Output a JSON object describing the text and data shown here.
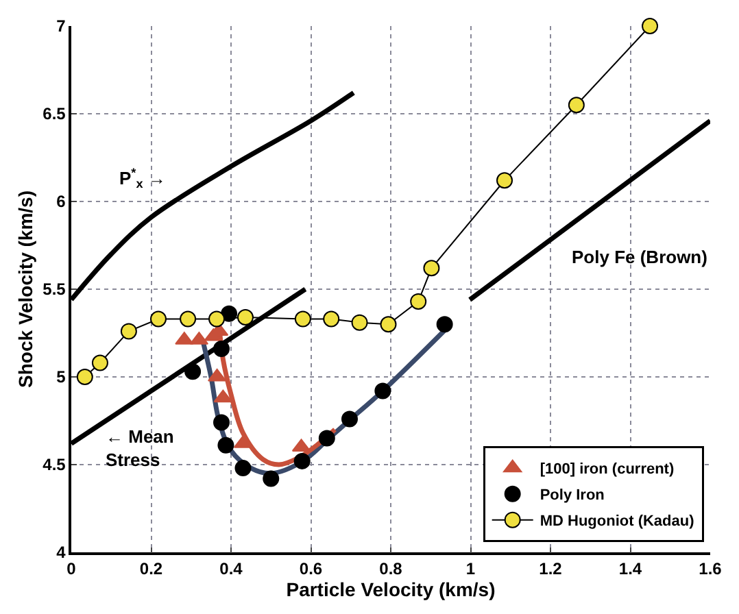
{
  "chart_data": {
    "type": "scatter",
    "xlabel": "Particle Velocity (km/s)",
    "ylabel": "Shock Velocity (km/s)",
    "xlim": [
      0,
      1.6
    ],
    "ylim": [
      4,
      7
    ],
    "xticks": [
      0,
      0.2,
      0.4,
      0.6,
      0.8,
      1,
      1.2,
      1.4,
      1.6
    ],
    "yticks": [
      4,
      4.5,
      5,
      5.5,
      6,
      6.5,
      7
    ],
    "grid": true,
    "legend": "bottom right",
    "series": [
      {
        "type": "line",
        "marker": "none",
        "color": "#000000",
        "x": [
          0,
          0.1,
          0.2,
          0.4,
          0.6,
          0.707
        ],
        "values": [
          5.44,
          5.7,
          5.91,
          6.2,
          6.46,
          6.62
        ]
      },
      {
        "type": "line",
        "marker": "none",
        "color": "#000000",
        "x": [
          0,
          0.586
        ],
        "values": [
          4.62,
          5.5
        ]
      },
      {
        "type": "line",
        "marker": "none",
        "color": "#000000",
        "x": [
          0.998,
          1.6
        ],
        "values": [
          5.44,
          6.46
        ]
      },
      {
        "type": "line",
        "marker": "none",
        "color": "#3a4a6a",
        "x": [
          0.33,
          0.35,
          0.37,
          0.4,
          0.45,
          0.5,
          0.58,
          0.65,
          0.7,
          0.78,
          0.95
        ],
        "values": [
          5.2,
          5.0,
          4.75,
          4.58,
          4.48,
          4.45,
          4.52,
          4.66,
          4.76,
          4.92,
          5.3
        ]
      },
      {
        "type": "line",
        "marker": "none",
        "color": "#c8503a",
        "x": [
          0.37,
          0.38,
          0.4,
          0.43,
          0.48,
          0.52,
          0.57,
          0.62,
          0.66
        ],
        "values": [
          5.3,
          5.1,
          4.9,
          4.68,
          4.53,
          4.5,
          4.54,
          4.62,
          4.7
        ]
      },
      {
        "name": "[100] iron (current)",
        "marker": "triangle",
        "color": "#c8503a",
        "x": [
          0.283,
          0.32,
          0.356,
          0.37,
          0.365,
          0.38,
          0.43,
          0.576
        ],
        "values": [
          5.21,
          5.21,
          5.23,
          5.26,
          5.0,
          4.88,
          4.62,
          4.6
        ]
      },
      {
        "name": "Poly Iron",
        "marker": "circle",
        "color": "#000000",
        "x": [
          0.304,
          0.376,
          0.387,
          0.43,
          0.5,
          0.578,
          0.64,
          0.697,
          0.78,
          0.935,
          0.395,
          0.376
        ],
        "values": [
          5.03,
          4.74,
          4.61,
          4.48,
          4.42,
          4.52,
          4.65,
          4.76,
          4.92,
          5.3,
          5.36,
          5.16
        ]
      },
      {
        "name": "MD Hugoniot (Kadau)",
        "type": "line",
        "marker": "circle",
        "color": "#f0e040",
        "x": [
          0.034,
          0.072,
          0.144,
          0.218,
          0.292,
          0.364,
          0.436,
          0.58,
          0.651,
          0.722,
          0.794,
          0.869,
          0.902,
          1.085,
          1.265,
          1.449
        ],
        "values": [
          5.0,
          5.08,
          5.26,
          5.33,
          5.33,
          5.33,
          5.34,
          5.33,
          5.33,
          5.31,
          5.3,
          5.43,
          5.62,
          6.12,
          6.55,
          7.0
        ]
      }
    ],
    "annotations": [
      "P$^{*}$$_{x}$ →",
      "← Mean\nStress",
      "Poly Fe (Brown)"
    ]
  }
}
